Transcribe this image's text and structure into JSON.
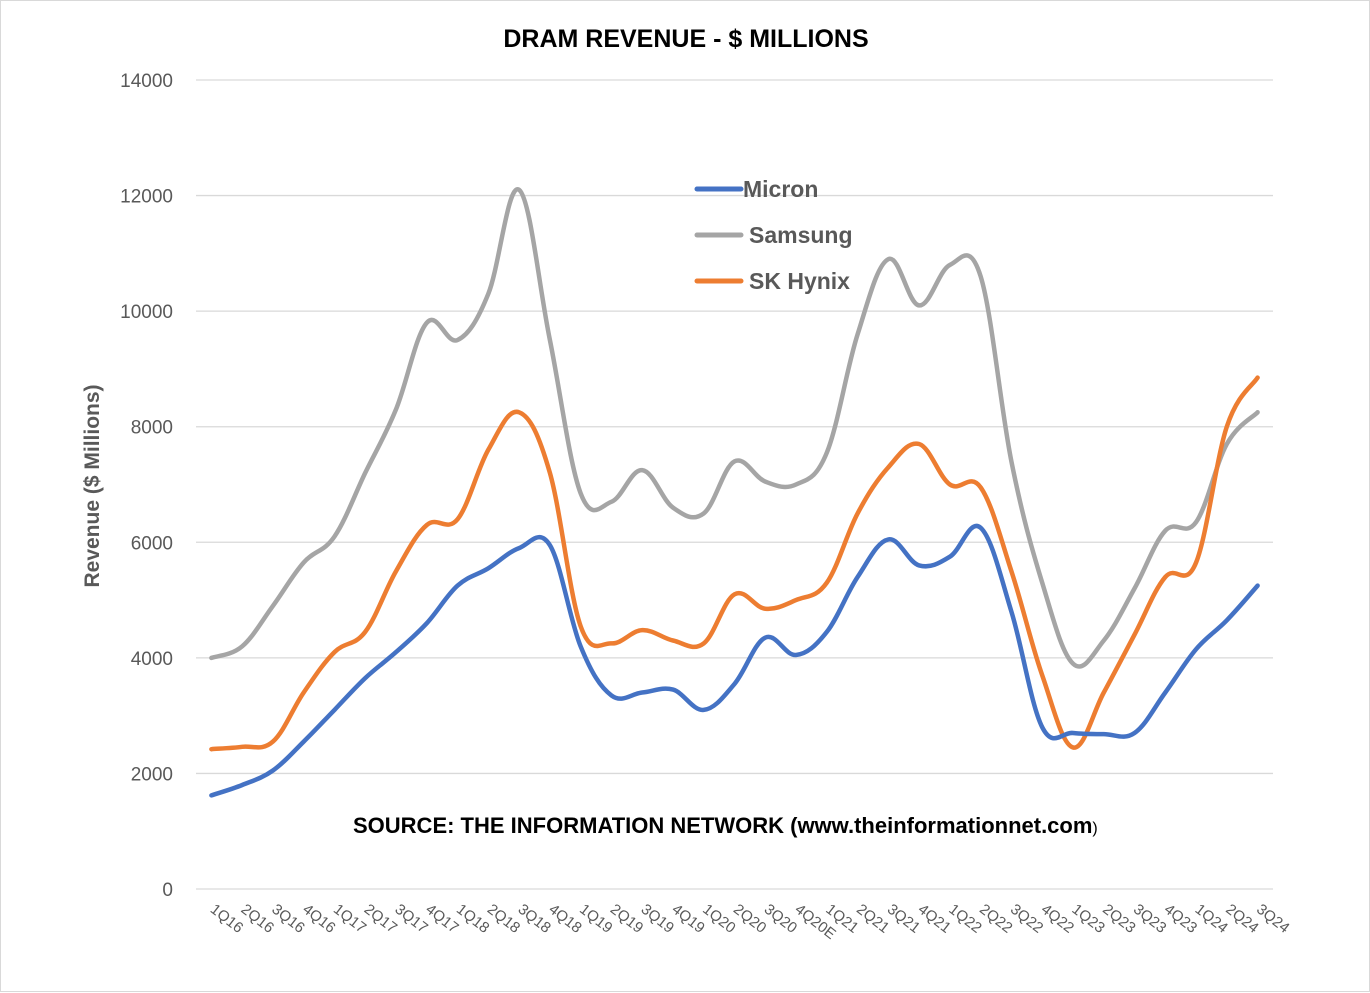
{
  "chart_data": {
    "type": "line",
    "title": "DRAM REVENUE - $ MILLIONS",
    "xlabel": "",
    "ylabel": "Revenue ($ Millions)",
    "ylim": [
      0,
      14000
    ],
    "yticks": [
      0,
      2000,
      4000,
      6000,
      8000,
      10000,
      12000,
      14000
    ],
    "ytick_labels": [
      "0",
      "2000",
      "4000",
      "6000",
      "8000",
      "10000",
      "12000",
      "14000"
    ],
    "grid": true,
    "legend_position": "upper-center",
    "categories": [
      "1Q16",
      "2Q16",
      "3Q16",
      "4Q16",
      "1Q17",
      "2Q17",
      "3Q17",
      "4Q17",
      "1Q18",
      "2Q18",
      "3Q18",
      "4Q18",
      "1Q19",
      "2Q19",
      "3Q19",
      "4Q19",
      "1Q20",
      "2Q20",
      "3Q20",
      "4Q20E",
      "1Q21",
      "2Q21",
      "3Q21",
      "4Q21",
      "1Q22",
      "2Q22",
      "3Q22",
      "4Q22",
      "1Q23",
      "2Q23",
      "3Q23",
      "4Q23",
      "1Q24",
      "2Q24",
      "3Q24"
    ],
    "series": [
      {
        "name": "Micron",
        "color": "#4472c4",
        "values": [
          1620,
          1800,
          2050,
          2550,
          3100,
          3650,
          4100,
          4600,
          5250,
          5550,
          5900,
          5950,
          4200,
          3350,
          3400,
          3450,
          3100,
          3550,
          4350,
          4050,
          4450,
          5400,
          6050,
          5600,
          5750,
          6250,
          4800,
          2800,
          2700,
          2680,
          2700,
          3400,
          4150,
          4650,
          5250
        ]
      },
      {
        "name": "Samsung",
        "color": "#a5a5a5",
        "values": [
          4000,
          4200,
          4900,
          5650,
          6100,
          7200,
          8300,
          9800,
          9500,
          10300,
          12100,
          9500,
          6850,
          6700,
          7250,
          6600,
          6500,
          7400,
          7050,
          7000,
          7550,
          9600,
          10900,
          10100,
          10800,
          10600,
          7400,
          5300,
          3900,
          4300,
          5200,
          6200,
          6350,
          7700,
          8250
        ]
      },
      {
        "name": "SK Hynix",
        "color": "#ed7d31",
        "values": [
          2420,
          2460,
          2550,
          3400,
          4100,
          4450,
          5500,
          6300,
          6400,
          7600,
          8250,
          7200,
          4550,
          4250,
          4480,
          4300,
          4250,
          5100,
          4850,
          5000,
          5300,
          6500,
          7300,
          7700,
          7000,
          6950,
          5500,
          3700,
          2450,
          3400,
          4400,
          5400,
          5650,
          8000,
          8850
        ]
      }
    ]
  },
  "source_note": {
    "text": "SOURCE: THE INFORMATION NETWORK (www.theinformationnet.com",
    "closing": ")"
  }
}
